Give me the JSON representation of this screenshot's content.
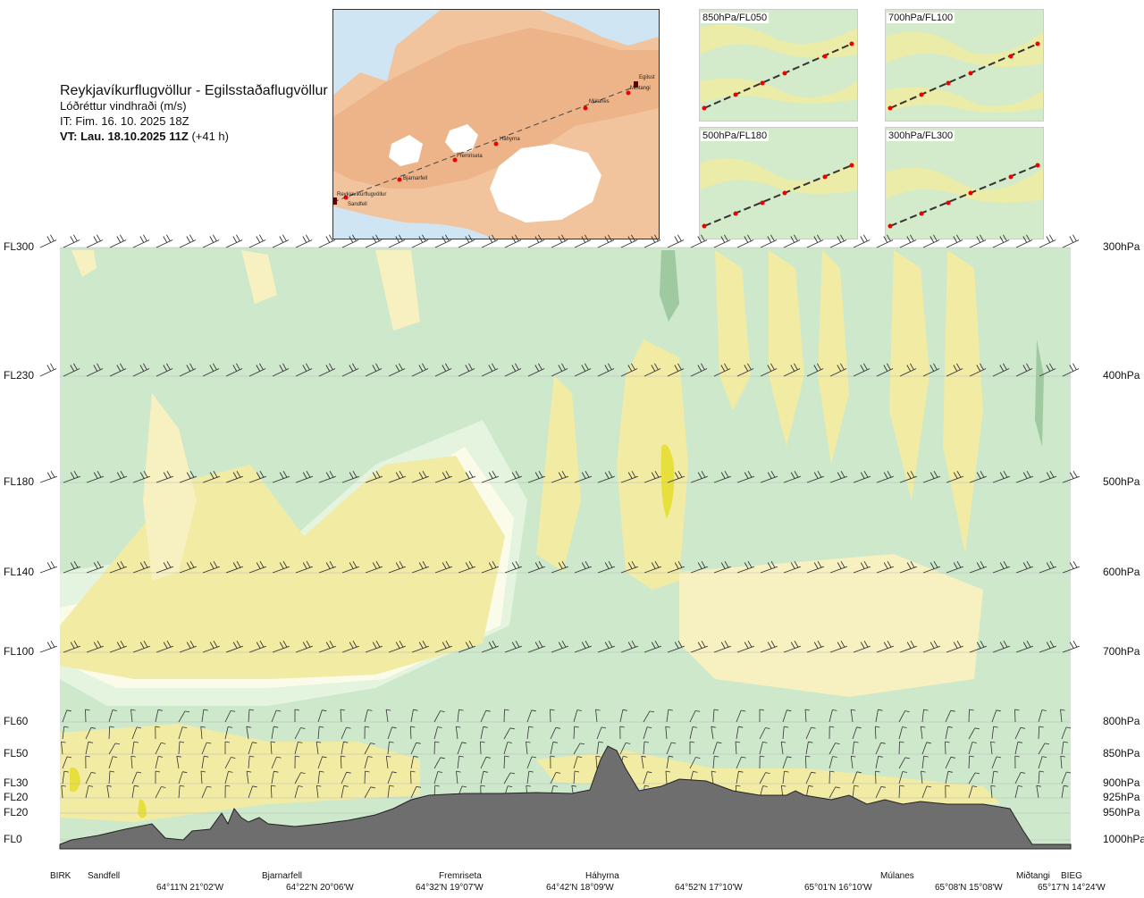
{
  "header": {
    "route": "Reykjavíkurflugvöllur - Egilsstaðaflugvöllur",
    "subtitle": "Lóðréttur vindhraði (m/s)",
    "issue_time": "IT: Fim. 16. 10. 2025 18Z",
    "valid_time": "VT: Lau. 18.10.2025 11Z",
    "lead": "(+41 h)"
  },
  "map": {
    "places": [
      "Reykjavíkurflugvöllur",
      "Sandfell",
      "Bjarnarfell",
      "Fremriseta",
      "Háhyrna",
      "Múlanes",
      "Miðtangi",
      "Egilsst"
    ]
  },
  "thumbnails": [
    {
      "label": "850hPa/FL050"
    },
    {
      "label": "700hPa/FL100"
    },
    {
      "label": "500hPa/FL180"
    },
    {
      "label": "300hPa/FL300"
    }
  ],
  "chart_data": {
    "type": "heatmap",
    "title": "Lóðréttur vindhraði (m/s)",
    "left_levels": [
      "FL300",
      "FL230",
      "FL180",
      "FL140",
      "FL100",
      "FL60",
      "FL50",
      "FL30",
      "FL20",
      "FL20",
      "FL0"
    ],
    "right_levels": [
      "300hPa",
      "400hPa",
      "500hPa",
      "600hPa",
      "700hPa",
      "800hPa",
      "850hPa",
      "900hPa",
      "925hPa",
      "950hPa",
      "1000hPa"
    ],
    "pressure_hpa": [
      300,
      400,
      500,
      600,
      700,
      800,
      850,
      900,
      925,
      950,
      1000
    ],
    "waypoints": [
      "BIRK",
      "Sandfell",
      "Bjarnarfell",
      "Fremriseta",
      "Háhyrna",
      "Múlanes",
      "Miðtangi",
      "BIEG"
    ],
    "coordinates": [
      "64°11'N 21°02'W",
      "64°22'N 20°06'W",
      "64°32'N 19°07'W",
      "64°42'N 18°09'W",
      "64°52'N 17°10'W",
      "65°01'N 16°10'W",
      "65°08'N 15°08'W",
      "65°17'N 14°24'W"
    ],
    "colors": {
      "strong_up": "#9fc9a0",
      "up": "#cde8cb",
      "weak_up": "#e4f4df",
      "neutral": "#fafbe8",
      "weak_down": "#f7f0c0",
      "down": "#f2eba4",
      "strong_down": "#e7df3c",
      "terrain": "#6e6e6e"
    },
    "legend": "none"
  }
}
